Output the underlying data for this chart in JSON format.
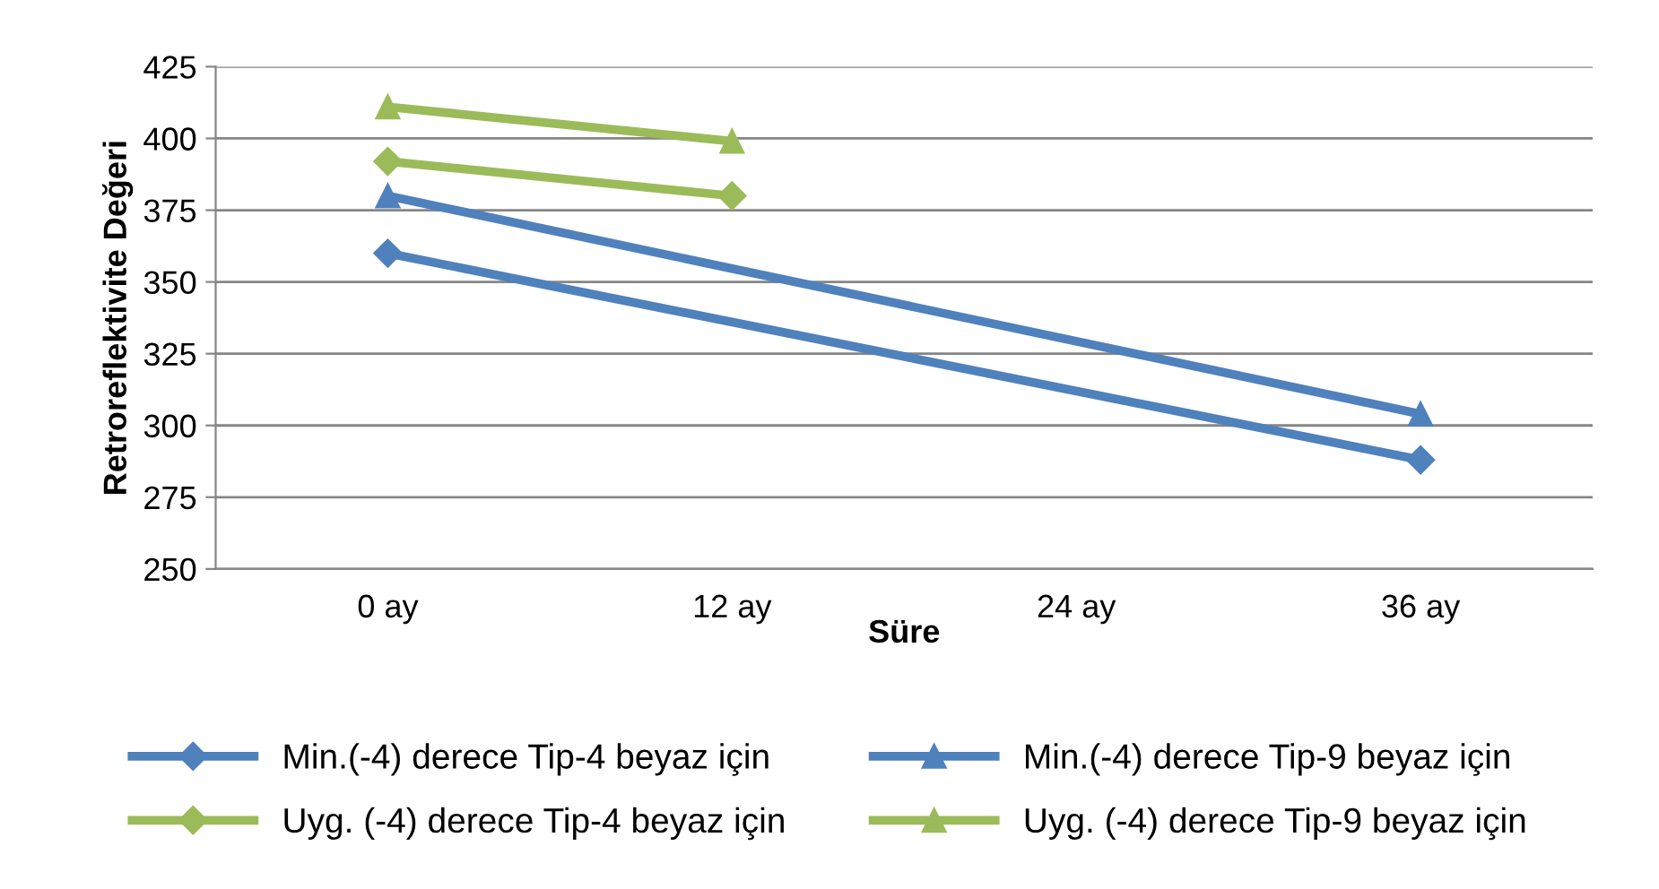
{
  "chart_data": {
    "type": "line",
    "xlabel": "Süre",
    "ylabel": "Retroreflektivite Değeri",
    "categories": [
      "0 ay",
      "12 ay",
      "24 ay",
      "36 ay"
    ],
    "series": [
      {
        "name": "Min.(-4) derece Tip-4 beyaz için",
        "color": "#4f81bd",
        "marker": "diamond",
        "values": [
          360,
          null,
          null,
          288
        ]
      },
      {
        "name": "Min.(-4) derece Tip-9 beyaz için",
        "color": "#4f81bd",
        "marker": "triangle",
        "values": [
          380,
          null,
          null,
          304
        ]
      },
      {
        "name": "Uyg. (-4) derece Tip-4 beyaz için",
        "color": "#9bbb59",
        "marker": "diamond",
        "values": [
          392,
          380,
          null,
          null
        ]
      },
      {
        "name": "Uyg. (-4) derece Tip-9 beyaz için",
        "color": "#9bbb59",
        "marker": "triangle",
        "values": [
          411,
          399,
          null,
          null
        ]
      }
    ],
    "ylim": [
      250,
      425
    ],
    "yticks": [
      250,
      275,
      300,
      325,
      350,
      375,
      400,
      425
    ],
    "grid": "y",
    "legend": "bottom",
    "line_style": "solid"
  }
}
